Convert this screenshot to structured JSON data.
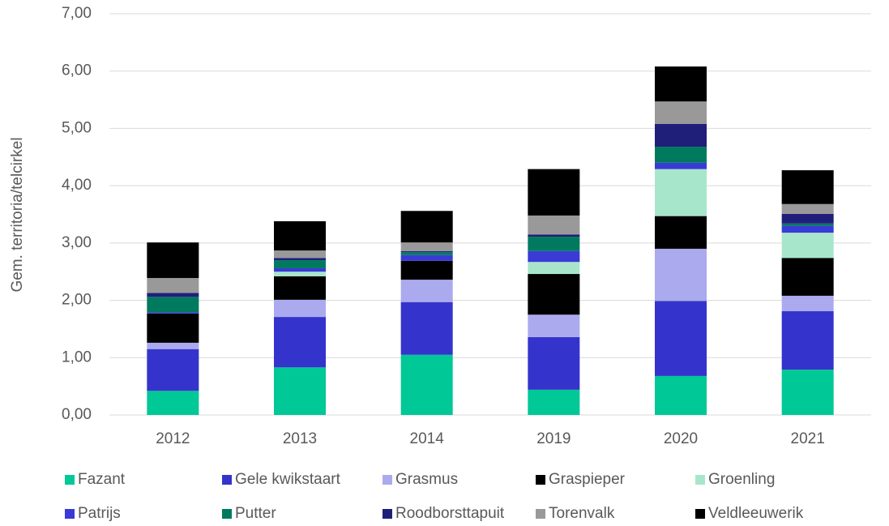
{
  "chart_data": {
    "type": "stacked_bar",
    "y_label": "Gem. territoria/telcirkel",
    "categories": [
      "2012",
      "2013",
      "2014",
      "2019",
      "2020",
      "2021"
    ],
    "series": [
      {
        "name": "Fazant",
        "color": "#00c896",
        "values": [
          0.42,
          0.83,
          1.05,
          0.44,
          0.68,
          0.79
        ]
      },
      {
        "name": "Gele kwikstaart",
        "color": "#3434cc",
        "values": [
          0.73,
          0.88,
          0.92,
          0.92,
          1.31,
          1.02
        ]
      },
      {
        "name": "Grasmus",
        "color": "#abaaee",
        "values": [
          0.11,
          0.3,
          0.39,
          0.39,
          0.91,
          0.27
        ]
      },
      {
        "name": "Graspieper",
        "color": "#000000",
        "values": [
          0.51,
          0.41,
          0.33,
          0.71,
          0.57,
          0.66
        ]
      },
      {
        "name": "Groenling",
        "color": "#a8e6cc",
        "values": [
          0,
          0.08,
          0,
          0.21,
          0.82,
          0.44
        ]
      },
      {
        "name": "Patrijs",
        "color": "#3a3ad6",
        "values": [
          0.02,
          0.06,
          0.1,
          0.19,
          0.11,
          0.12
        ]
      },
      {
        "name": "Putter",
        "color": "#007a5e",
        "values": [
          0.27,
          0.14,
          0.05,
          0.25,
          0.28,
          0.04
        ]
      },
      {
        "name": "Roodborsttapuit",
        "color": "#1f1f7a",
        "values": [
          0.07,
          0.04,
          0.02,
          0.04,
          0.4,
          0.17
        ]
      },
      {
        "name": "Torenvalk",
        "color": "#999999",
        "values": [
          0.26,
          0.13,
          0.15,
          0.33,
          0.39,
          0.17
        ]
      },
      {
        "name": "Veldleeuwerik",
        "color": "#000000",
        "values": [
          0.62,
          0.51,
          0.55,
          0.81,
          0.61,
          0.59
        ]
      }
    ],
    "ylim": [
      0,
      7
    ],
    "yticks": [
      {
        "value": 0,
        "label": "0,00"
      },
      {
        "value": 1,
        "label": "1,00"
      },
      {
        "value": 2,
        "label": "2,00"
      },
      {
        "value": 3,
        "label": "3,00"
      },
      {
        "value": 4,
        "label": "4,00"
      },
      {
        "value": 5,
        "label": "5,00"
      },
      {
        "value": 6,
        "label": "6,00"
      },
      {
        "value": 7,
        "label": "7,00"
      }
    ],
    "grid": true
  }
}
